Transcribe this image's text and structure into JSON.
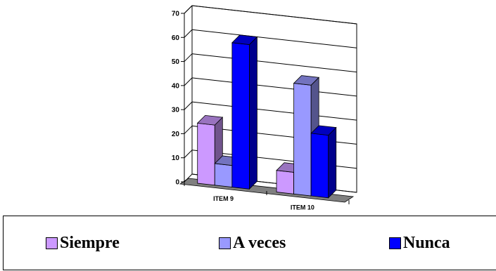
{
  "chart_data": {
    "type": "bar",
    "categories": [
      "ITEM 9",
      "ITEM 10"
    ],
    "series": [
      {
        "name": "Siempre",
        "values": [
          25,
          9
        ],
        "color": "#CC99FF"
      },
      {
        "name": "A veces",
        "values": [
          9,
          46
        ],
        "color": "#9999FF"
      },
      {
        "name": "Nunca",
        "values": [
          60,
          26
        ],
        "color": "#0000FF"
      }
    ],
    "ylim": [
      0,
      70
    ],
    "yticks": [
      "0",
      "10",
      "20",
      "30",
      "40",
      "50",
      "60",
      "70"
    ],
    "grid": true,
    "legend_position": "bottom",
    "title": "",
    "xlabel": "",
    "ylabel": ""
  }
}
